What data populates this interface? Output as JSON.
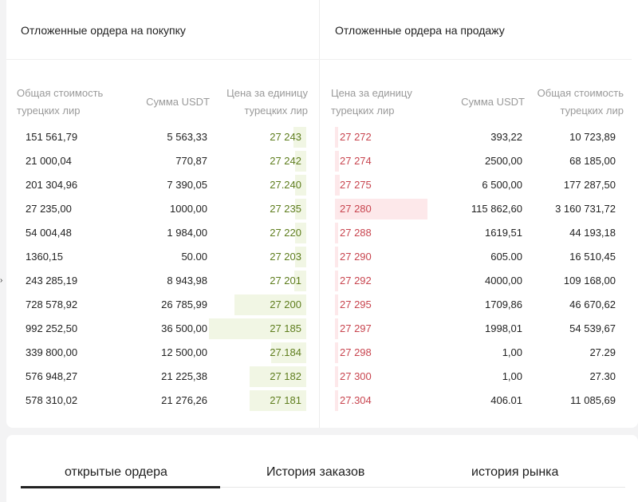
{
  "buy": {
    "title": "Отложенные ордера на покупку",
    "headers": {
      "total": "Общая стоимость турецких лир",
      "usdt": "Сумма USDT",
      "price": "Цена за единицу турецких лир"
    },
    "rows": [
      {
        "total": "151 561,79",
        "usdt": "5 563,33",
        "price": "27 243",
        "depth": 0.13
      },
      {
        "total": "21 000,04",
        "usdt": "770,87",
        "price": "27 242",
        "depth": 0.06
      },
      {
        "total": "201 304,96",
        "usdt": "7 390,05",
        "price": "27.240",
        "depth": 0.1
      },
      {
        "total": "27 235,00",
        "usdt": "1000,00",
        "price": "27 235",
        "depth": 0.07
      },
      {
        "total": "54 004,48",
        "usdt": "1 984,00",
        "price": "27 220",
        "depth": 0.06
      },
      {
        "total": "1360,15",
        "usdt": "50.00",
        "price": "27 203",
        "depth": 0.04
      },
      {
        "total": "243 285,19",
        "usdt": "8 943,98",
        "price": "27 201",
        "depth": 0.12
      },
      {
        "total": "728 578,92",
        "usdt": "26 785,99",
        "price": "27 200",
        "depth": 0.74
      },
      {
        "total": "992 252,50",
        "usdt": "36 500,00",
        "price": "27 185",
        "depth": 1.0
      },
      {
        "total": "339 800,00",
        "usdt": "12 500,00",
        "price": "27.184",
        "depth": 0.36
      },
      {
        "total": "576 948,27",
        "usdt": "21 225,38",
        "price": "27 182",
        "depth": 0.58
      },
      {
        "total": "578 310,02",
        "usdt": "21 276,26",
        "price": "27 181",
        "depth": 0.58
      }
    ]
  },
  "sell": {
    "title": "Отложенные ордера на продажу",
    "headers": {
      "price": "Цена за единицу турецких лир",
      "usdt": "Сумма USDT",
      "total": "Общая стоимость турецких лир"
    },
    "rows": [
      {
        "price": "27 272",
        "usdt": "393,22",
        "total": "10 723,89",
        "depth": 0.03
      },
      {
        "price": "27 274",
        "usdt": "2500,00",
        "total": "68 185,00",
        "depth": 0.04
      },
      {
        "price": "27 275",
        "usdt": "6 500,00",
        "total": "177 287,50",
        "depth": 0.05
      },
      {
        "price": "27 280",
        "usdt": "115 862,60",
        "total": "3 160 731,72",
        "depth": 1.0
      },
      {
        "price": "27 288",
        "usdt": "1619,51",
        "total": "44 193,18",
        "depth": 0.03
      },
      {
        "price": "27 290",
        "usdt": "605.00",
        "total": "16 510,45",
        "depth": 0.02
      },
      {
        "price": "27 292",
        "usdt": "4000,00",
        "total": "109 168,00",
        "depth": 0.03
      },
      {
        "price": "27 295",
        "usdt": "1709,86",
        "total": "46 670,62",
        "depth": 0.02
      },
      {
        "price": "27 297",
        "usdt": "1998,01",
        "total": "54 539,67",
        "depth": 0.02
      },
      {
        "price": "27 298",
        "usdt": "1,00",
        "total": "27.29",
        "depth": 0.01
      },
      {
        "price": "27 300",
        "usdt": "1,00",
        "total": "27.30",
        "depth": 0.01
      },
      {
        "price": "27.304",
        "usdt": "406.01",
        "total": "11 085,69",
        "depth": 0.01
      }
    ]
  },
  "tabs": [
    {
      "label": "открытые ордера",
      "active": true
    },
    {
      "label": "История заказов",
      "active": false
    },
    {
      "label": "история рынка",
      "active": false
    }
  ],
  "colors": {
    "buy_price": "#5e7d1d",
    "sell_price": "#c8454f",
    "buy_depth": "#f1f6e4",
    "sell_depth": "#fde8ea"
  }
}
